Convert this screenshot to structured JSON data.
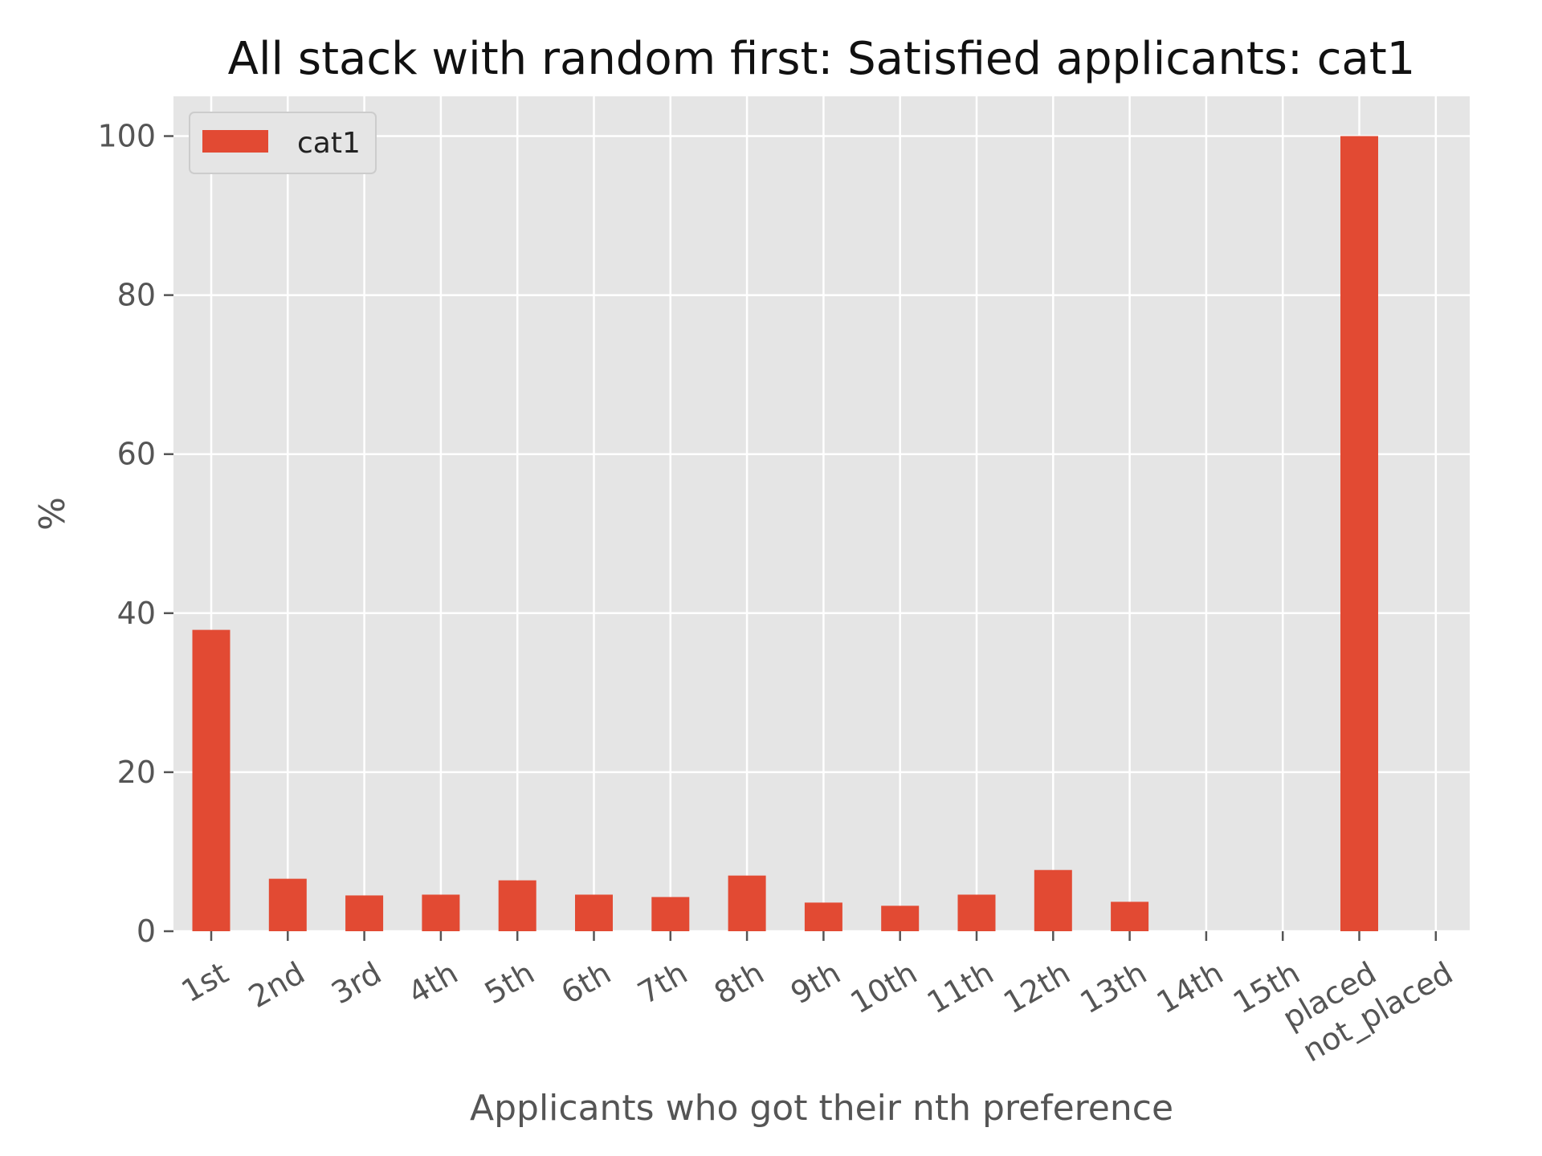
{
  "chart_data": {
    "type": "bar",
    "title": "All stack with random first: Satisfied applicants: cat1",
    "xlabel": "Applicants who got their nth preference",
    "ylabel": "%",
    "categories": [
      "1st",
      "2nd",
      "3rd",
      "4th",
      "5th",
      "6th",
      "7th",
      "8th",
      "9th",
      "10th",
      "11th",
      "12th",
      "13th",
      "14th",
      "15th",
      "placed",
      "not_placed"
    ],
    "series": [
      {
        "name": "cat1",
        "color": "#E24A33",
        "values": [
          37.9,
          6.6,
          4.5,
          4.6,
          6.4,
          4.6,
          4.3,
          7.0,
          3.6,
          3.2,
          4.6,
          7.7,
          3.7,
          0,
          0,
          100,
          0
        ]
      }
    ],
    "ylim": [
      0,
      105
    ],
    "yticks": [
      0,
      20,
      40,
      60,
      80,
      100
    ],
    "grid": true,
    "legend_position": "top-left",
    "style": {
      "plot_background": "#E5E5E5",
      "grid_color": "#FFFFFF"
    }
  }
}
